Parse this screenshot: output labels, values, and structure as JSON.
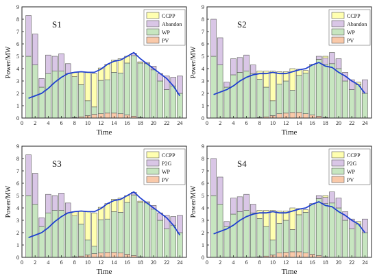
{
  "colors": {
    "PV": "#f9c9a9",
    "WP": "#c7e6c0",
    "Abandon": "#d9c6e6",
    "P2G": "#d9c6e6",
    "CCPP": "#ffffb0",
    "load": "#1f3fd0",
    "bar_edge": "#555555"
  },
  "chart_data": [
    {
      "type": "bar",
      "stacked": true,
      "title": "S1",
      "xlabel": "Time",
      "ylabel": "Power/MW",
      "xlim": [
        0,
        25
      ],
      "ylim": [
        0,
        9
      ],
      "xticks": [
        "0",
        "2",
        "4",
        "6",
        "8",
        "10",
        "12",
        "14",
        "16",
        "18",
        "20",
        "22",
        "24"
      ],
      "yticks": [
        "0",
        "1",
        "2",
        "3",
        "4",
        "5",
        "6",
        "7",
        "8",
        "9"
      ],
      "legend_position": "top-right",
      "legend": [
        "CCPP",
        "Abandon",
        "WP",
        "PV"
      ],
      "x": [
        1,
        2,
        3,
        4,
        5,
        6,
        7,
        8,
        9,
        10,
        11,
        12,
        13,
        14,
        15,
        16,
        17,
        18,
        19,
        20,
        21,
        22,
        23,
        24
      ],
      "series": [
        {
          "name": "PV",
          "key": "PV",
          "values": [
            0,
            0,
            0,
            0,
            0,
            0,
            0,
            0.05,
            0.1,
            0.2,
            0.3,
            0.35,
            0.4,
            0.4,
            0.35,
            0.25,
            0.15,
            0.05,
            0,
            0,
            0,
            0,
            0,
            0
          ]
        },
        {
          "name": "WP",
          "key": "WP",
          "values": [
            5,
            4.3,
            2.5,
            3.6,
            3.8,
            3.8,
            3.6,
            3.3,
            2.6,
            1.2,
            0.6,
            2.7,
            2.7,
            3.3,
            3.3,
            4.2,
            4.9,
            4.4,
            4.4,
            3.9,
            3.0,
            2.3,
            2.6,
            2.0
          ]
        },
        {
          "name": "Abandon",
          "key": "Abandon",
          "values": [
            3.3,
            2.5,
            0.7,
            1.5,
            1.2,
            1.4,
            0.8,
            0,
            0,
            0,
            0,
            0,
            0,
            0,
            0,
            0,
            0.2,
            0,
            0.1,
            0.3,
            0.6,
            1.1,
            0.7,
            1.4
          ]
        },
        {
          "name": "CCPP",
          "key": "CCPP",
          "values": [
            0,
            0,
            0,
            0,
            0,
            0,
            0,
            0.35,
            1.05,
            2.3,
            2.7,
            1.0,
            1.25,
            1.0,
            1.15,
            0.55,
            0,
            0.1,
            0,
            0,
            0,
            0,
            0,
            0
          ]
        }
      ],
      "load": [
        1.6,
        1.8,
        2.0,
        2.4,
        2.9,
        3.3,
        3.6,
        3.7,
        3.75,
        3.7,
        3.7,
        3.95,
        4.35,
        4.6,
        4.7,
        5.0,
        5.3,
        4.8,
        4.4,
        4.0,
        3.6,
        3.2,
        2.6,
        1.8
      ]
    },
    {
      "type": "bar",
      "stacked": true,
      "title": "S2",
      "xlabel": "Time",
      "ylabel": "Power/MW",
      "xlim": [
        0,
        25
      ],
      "ylim": [
        0,
        9
      ],
      "xticks": [
        "0",
        "2",
        "4",
        "6",
        "8",
        "10",
        "12",
        "14",
        "16",
        "18",
        "20",
        "22",
        "24"
      ],
      "yticks": [
        "0",
        "1",
        "2",
        "3",
        "4",
        "5",
        "6",
        "7",
        "8",
        "9"
      ],
      "legend_position": "top-right",
      "legend": [
        "CCPP",
        "Abandon",
        "WP",
        "PV"
      ],
      "x": [
        1,
        2,
        3,
        4,
        5,
        6,
        7,
        8,
        9,
        10,
        11,
        12,
        13,
        14,
        15,
        16,
        17,
        18,
        19,
        20,
        21,
        22,
        23,
        24
      ],
      "series": [
        {
          "name": "PV",
          "key": "PV",
          "values": [
            0,
            0,
            0,
            0,
            0,
            0,
            0,
            0.05,
            0.1,
            0.2,
            0.35,
            0.4,
            0.45,
            0.45,
            0.35,
            0.25,
            0.15,
            0.05,
            0,
            0,
            0,
            0,
            0,
            0
          ]
        },
        {
          "name": "WP",
          "key": "WP",
          "values": [
            5,
            4.3,
            2.5,
            3.5,
            3.7,
            3.8,
            3.6,
            3.1,
            2.4,
            1.2,
            2.4,
            2.6,
            1.8,
            3.0,
            3.3,
            4.1,
            4.6,
            4.3,
            4.4,
            4.0,
            3.0,
            2.3,
            2.7,
            2.0
          ]
        },
        {
          "name": "Abandon",
          "key": "Abandon",
          "values": [
            3.0,
            2.2,
            0.4,
            1.3,
            1.2,
            1.3,
            0.7,
            0,
            0,
            0,
            0,
            0,
            0,
            0,
            0,
            0,
            0.25,
            0.5,
            0.9,
            0.8,
            0.7,
            0.8,
            0,
            1.1
          ]
        },
        {
          "name": "CCPP",
          "key": "CCPP",
          "values": [
            0,
            0,
            0,
            0,
            0,
            0,
            0,
            0.65,
            1.3,
            2.4,
            1.0,
            0.75,
            1.75,
            0.5,
            0.2,
            0,
            0,
            0.15,
            0,
            0,
            0,
            0,
            0.2,
            0
          ]
        }
      ],
      "load": [
        1.9,
        2.1,
        2.3,
        2.6,
        3.0,
        3.3,
        3.5,
        3.6,
        3.6,
        3.7,
        3.6,
        3.6,
        3.75,
        3.9,
        4.0,
        4.3,
        4.5,
        4.2,
        4.1,
        3.7,
        3.4,
        3.0,
        2.7,
        2.0
      ]
    },
    {
      "type": "bar",
      "stacked": true,
      "title": "S3",
      "xlabel": "Time",
      "ylabel": "Power/MW",
      "xlim": [
        0,
        25
      ],
      "ylim": [
        0,
        9
      ],
      "xticks": [
        "0",
        "2",
        "4",
        "6",
        "8",
        "10",
        "12",
        "14",
        "16",
        "18",
        "20",
        "22",
        "24"
      ],
      "yticks": [
        "0",
        "1",
        "2",
        "3",
        "4",
        "5",
        "6",
        "7",
        "8",
        "9"
      ],
      "legend_position": "top-right",
      "legend": [
        "CCPP",
        "P2G",
        "WP",
        "PV"
      ],
      "x": [
        1,
        2,
        3,
        4,
        5,
        6,
        7,
        8,
        9,
        10,
        11,
        12,
        13,
        14,
        15,
        16,
        17,
        18,
        19,
        20,
        21,
        22,
        23,
        24
      ],
      "series": [
        {
          "name": "PV",
          "key": "PV",
          "values": [
            0,
            0,
            0,
            0,
            0,
            0,
            0,
            0.05,
            0.1,
            0.2,
            0.3,
            0.35,
            0.4,
            0.4,
            0.35,
            0.25,
            0.15,
            0.05,
            0,
            0,
            0,
            0,
            0,
            0
          ]
        },
        {
          "name": "WP",
          "key": "WP",
          "values": [
            5,
            4.3,
            2.5,
            3.6,
            3.8,
            3.8,
            3.6,
            3.3,
            2.6,
            1.2,
            0.6,
            2.7,
            2.7,
            3.3,
            3.3,
            4.2,
            4.9,
            4.4,
            4.4,
            3.9,
            3.0,
            2.3,
            2.6,
            2.0
          ]
        },
        {
          "name": "P2G",
          "key": "P2G",
          "values": [
            3.3,
            2.5,
            0.7,
            1.5,
            1.2,
            1.4,
            0.8,
            0,
            0,
            0,
            0,
            0,
            0,
            0,
            0,
            0,
            0.2,
            0,
            0.1,
            0.3,
            0.6,
            1.1,
            0.7,
            1.4
          ]
        },
        {
          "name": "CCPP",
          "key": "CCPP",
          "values": [
            0,
            0,
            0,
            0,
            0,
            0,
            0,
            0.35,
            1.05,
            2.3,
            2.7,
            1.0,
            1.25,
            1.0,
            1.15,
            0.55,
            0,
            0.1,
            0,
            0,
            0,
            0,
            0,
            0
          ]
        }
      ],
      "load": [
        1.6,
        1.8,
        2.0,
        2.4,
        2.9,
        3.3,
        3.6,
        3.7,
        3.75,
        3.7,
        3.7,
        3.95,
        4.35,
        4.6,
        4.7,
        5.0,
        5.3,
        4.8,
        4.4,
        4.0,
        3.6,
        3.2,
        2.6,
        1.8
      ]
    },
    {
      "type": "bar",
      "stacked": true,
      "title": "S4",
      "xlabel": "Time",
      "ylabel": "Power/MW",
      "xlim": [
        0,
        25
      ],
      "ylim": [
        0,
        9
      ],
      "xticks": [
        "0",
        "2",
        "4",
        "6",
        "8",
        "10",
        "12",
        "14",
        "16",
        "18",
        "20",
        "22",
        "24"
      ],
      "yticks": [
        "0",
        "1",
        "2",
        "3",
        "4",
        "5",
        "6",
        "7",
        "8",
        "9"
      ],
      "legend_position": "top-right",
      "legend": [
        "CCPP",
        "P2G",
        "WP",
        "PV"
      ],
      "x": [
        1,
        2,
        3,
        4,
        5,
        6,
        7,
        8,
        9,
        10,
        11,
        12,
        13,
        14,
        15,
        16,
        17,
        18,
        19,
        20,
        21,
        22,
        23,
        24
      ],
      "series": [
        {
          "name": "PV",
          "key": "PV",
          "values": [
            0,
            0,
            0,
            0,
            0,
            0,
            0,
            0.05,
            0.1,
            0.2,
            0.35,
            0.4,
            0.45,
            0.45,
            0.35,
            0.25,
            0.15,
            0.05,
            0,
            0,
            0,
            0,
            0,
            0
          ]
        },
        {
          "name": "WP",
          "key": "WP",
          "values": [
            5,
            4.3,
            2.5,
            3.5,
            3.7,
            3.8,
            3.6,
            3.1,
            2.4,
            1.2,
            2.4,
            2.6,
            1.8,
            3.0,
            3.3,
            4.1,
            4.6,
            4.3,
            4.4,
            4.0,
            3.0,
            2.3,
            2.7,
            2.0
          ]
        },
        {
          "name": "P2G",
          "key": "P2G",
          "values": [
            3.0,
            2.2,
            0.4,
            1.3,
            1.2,
            1.3,
            0.7,
            0,
            0,
            0,
            0,
            0,
            0,
            0,
            0,
            0,
            0.25,
            0.5,
            0.9,
            0.8,
            0.7,
            0.8,
            0,
            1.1
          ]
        },
        {
          "name": "CCPP",
          "key": "CCPP",
          "values": [
            0,
            0,
            0,
            0,
            0,
            0,
            0,
            0.65,
            1.3,
            2.4,
            1.0,
            0.75,
            1.75,
            0.5,
            0.2,
            0,
            0,
            0.15,
            0,
            0,
            0,
            0,
            0.2,
            0
          ]
        }
      ],
      "load": [
        1.9,
        2.1,
        2.3,
        2.6,
        3.0,
        3.3,
        3.5,
        3.6,
        3.6,
        3.7,
        3.6,
        3.6,
        3.75,
        3.9,
        4.0,
        4.3,
        4.5,
        4.2,
        4.1,
        3.7,
        3.4,
        3.0,
        2.7,
        2.0
      ]
    }
  ]
}
